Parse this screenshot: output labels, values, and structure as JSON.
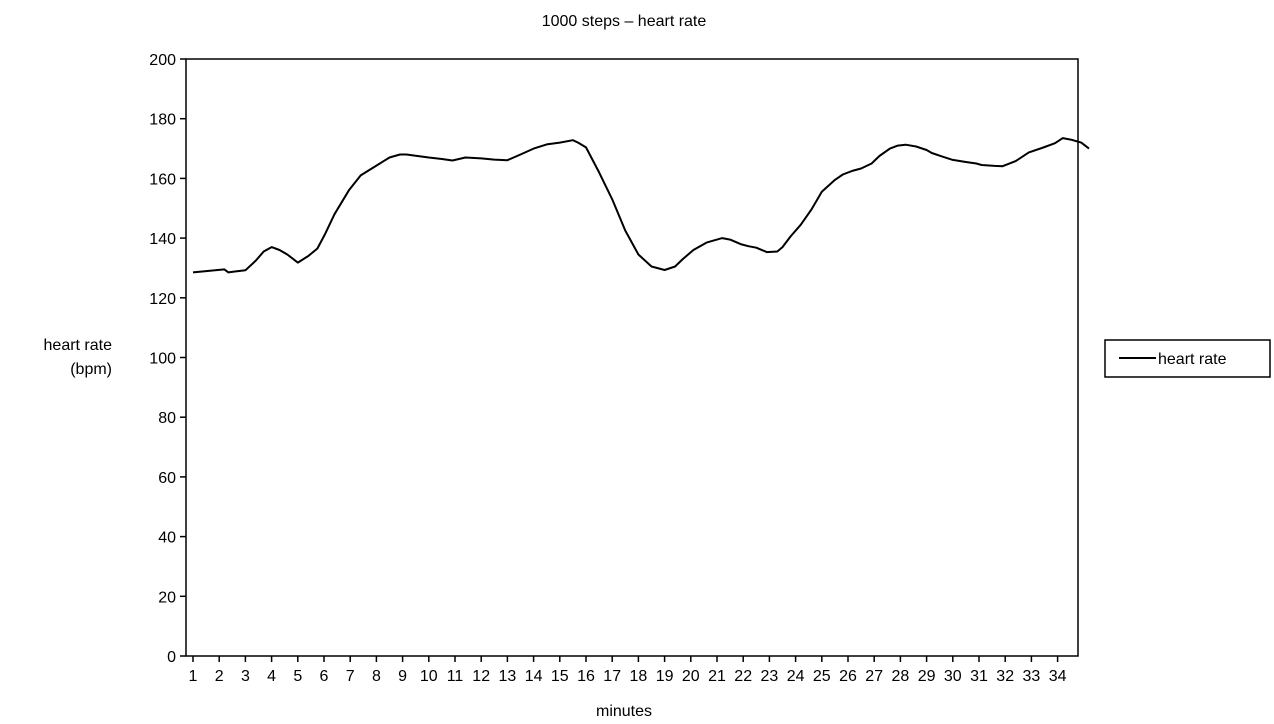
{
  "chart_data": {
    "type": "line",
    "title": "1000 steps – heart rate",
    "xlabel": "minutes",
    "ylabel_line1": "heart rate",
    "ylabel_line2": "(bpm)",
    "ylim": [
      0,
      200
    ],
    "yticks": [
      0,
      20,
      40,
      60,
      80,
      100,
      120,
      140,
      160,
      180,
      200
    ],
    "xlim": [
      1,
      34
    ],
    "xticks": [
      "1",
      "2",
      "3",
      "4",
      "5",
      "6",
      "7",
      "8",
      "9",
      "10",
      "11",
      "12",
      "13",
      "14",
      "15",
      "16",
      "17",
      "18",
      "19",
      "20",
      "21",
      "22",
      "23",
      "24",
      "25",
      "26",
      "27",
      "28",
      "29",
      "30",
      "31",
      "32",
      "33",
      "34"
    ],
    "grid": false,
    "legend_position": "right",
    "series": [
      {
        "name": "heart rate",
        "color": "#000000",
        "points": [
          [
            1.0,
            128.5
          ],
          [
            2.2,
            129.5
          ],
          [
            2.35,
            128.5
          ],
          [
            2.6,
            128.8
          ],
          [
            3.0,
            129.2
          ],
          [
            3.4,
            132.5
          ],
          [
            3.7,
            135.5
          ],
          [
            4.0,
            137.0
          ],
          [
            4.3,
            136.0
          ],
          [
            4.6,
            134.5
          ],
          [
            5.0,
            131.8
          ],
          [
            5.4,
            134.0
          ],
          [
            5.75,
            136.5
          ],
          [
            6.05,
            141.5
          ],
          [
            6.4,
            148.0
          ],
          [
            6.95,
            156.0
          ],
          [
            7.4,
            161.0
          ],
          [
            8.0,
            164.3
          ],
          [
            8.5,
            167.0
          ],
          [
            8.9,
            168.0
          ],
          [
            9.15,
            168.0
          ],
          [
            9.5,
            167.6
          ],
          [
            10.0,
            167.0
          ],
          [
            10.5,
            166.5
          ],
          [
            10.9,
            166.0
          ],
          [
            11.4,
            167.0
          ],
          [
            12.0,
            166.7
          ],
          [
            12.5,
            166.3
          ],
          [
            13.0,
            166.1
          ],
          [
            13.5,
            168.0
          ],
          [
            14.0,
            170.0
          ],
          [
            14.5,
            171.4
          ],
          [
            15.0,
            172.0
          ],
          [
            15.5,
            172.8
          ],
          [
            15.7,
            172.0
          ],
          [
            16.0,
            170.4
          ],
          [
            16.5,
            162.0
          ],
          [
            17.0,
            153.0
          ],
          [
            17.5,
            142.5
          ],
          [
            18.0,
            134.5
          ],
          [
            18.5,
            130.5
          ],
          [
            19.0,
            129.3
          ],
          [
            19.4,
            130.5
          ],
          [
            19.7,
            133.0
          ],
          [
            20.1,
            136.0
          ],
          [
            20.6,
            138.5
          ],
          [
            21.0,
            139.5
          ],
          [
            21.2,
            140.0
          ],
          [
            21.5,
            139.5
          ],
          [
            21.9,
            138.0
          ],
          [
            22.2,
            137.3
          ],
          [
            22.5,
            136.8
          ],
          [
            22.9,
            135.3
          ],
          [
            23.3,
            135.5
          ],
          [
            23.5,
            137.0
          ],
          [
            23.8,
            140.5
          ],
          [
            24.2,
            144.5
          ],
          [
            24.6,
            149.5
          ],
          [
            25.0,
            155.5
          ],
          [
            25.5,
            159.5
          ],
          [
            25.8,
            161.3
          ],
          [
            26.2,
            162.6
          ],
          [
            26.5,
            163.3
          ],
          [
            26.9,
            165.0
          ],
          [
            27.2,
            167.5
          ],
          [
            27.6,
            170.0
          ],
          [
            27.9,
            171.0
          ],
          [
            28.2,
            171.3
          ],
          [
            28.6,
            170.7
          ],
          [
            29.0,
            169.5
          ],
          [
            29.2,
            168.5
          ],
          [
            29.6,
            167.3
          ],
          [
            30.0,
            166.2
          ],
          [
            30.5,
            165.5
          ],
          [
            30.9,
            165.0
          ],
          [
            31.1,
            164.5
          ],
          [
            31.6,
            164.2
          ],
          [
            31.9,
            164.1
          ],
          [
            32.4,
            165.8
          ],
          [
            32.9,
            168.7
          ],
          [
            33.4,
            170.2
          ],
          [
            33.9,
            171.8
          ],
          [
            34.2,
            173.5
          ],
          [
            34.5,
            173.0
          ],
          [
            34.9,
            172.0
          ],
          [
            35.2,
            170.0
          ]
        ]
      }
    ]
  }
}
